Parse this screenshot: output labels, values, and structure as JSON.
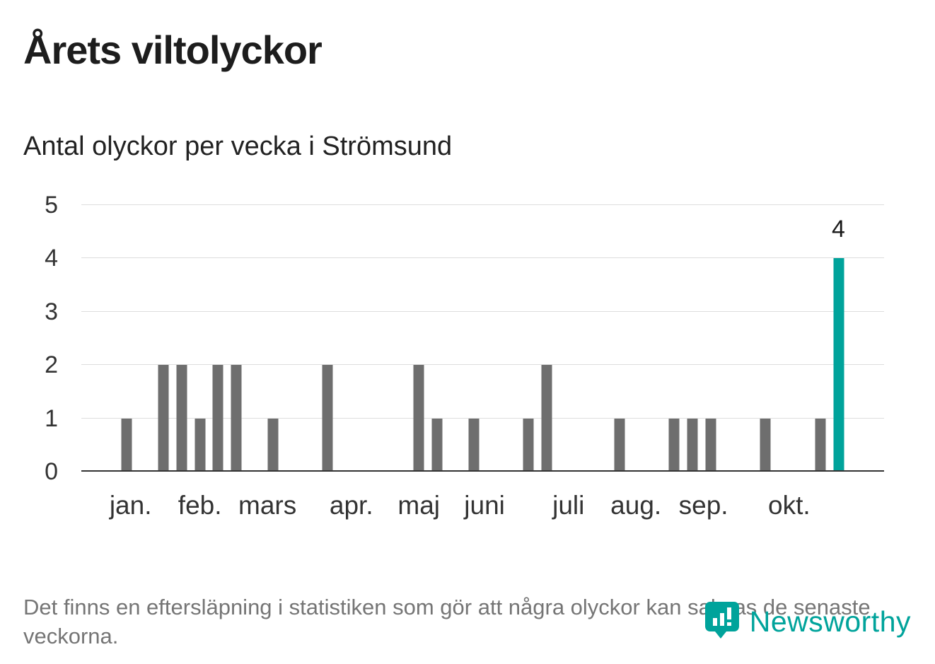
{
  "page": {
    "title": "Årets viltolyckor",
    "subtitle": "Antal olyckor per vecka i Strömsund",
    "footnote": "Det finns en eftersläpning i statistiken som gör att några olyckor kan saknas de senaste veckorna.",
    "brand": "Newsworthy"
  },
  "colors": {
    "bar": "#6e6e6e",
    "highlight": "#00a39b",
    "brand": "#00a39b",
    "axis": "#333333",
    "gridline": "#dddddd",
    "text": "#1a1a1a",
    "muted": "#757575"
  },
  "chart_data": {
    "type": "bar",
    "title": "Årets viltolyckor",
    "subtitle": "Antal olyckor per vecka i Strömsund",
    "xlabel": "",
    "ylabel": "",
    "weeks": [
      1,
      2,
      3,
      4,
      5,
      6,
      7,
      8,
      9,
      10,
      11,
      12,
      13,
      14,
      15,
      16,
      17,
      18,
      19,
      20,
      21,
      22,
      23,
      24,
      25,
      26,
      27,
      28,
      29,
      30,
      31,
      32,
      33,
      34,
      35,
      36,
      37,
      38,
      39,
      40,
      41,
      42,
      43,
      44
    ],
    "values": [
      0,
      0,
      1,
      0,
      2,
      2,
      1,
      2,
      2,
      0,
      1,
      0,
      0,
      2,
      0,
      0,
      0,
      0,
      2,
      1,
      0,
      1,
      0,
      0,
      1,
      2,
      0,
      0,
      0,
      1,
      0,
      0,
      1,
      1,
      1,
      0,
      0,
      1,
      0,
      0,
      1,
      4,
      0,
      0
    ],
    "highlight_index": 41,
    "annotation": {
      "text": "4"
    },
    "ylim": [
      0,
      5
    ],
    "yticks": [
      0,
      1,
      2,
      3,
      4,
      5
    ],
    "grid": true,
    "legend": "none",
    "month_ticks": [
      {
        "label": "jan.",
        "week_pos": 2.7
      },
      {
        "label": "feb.",
        "week_pos": 6.5
      },
      {
        "label": "mars",
        "week_pos": 10.2
      },
      {
        "label": "apr.",
        "week_pos": 14.8
      },
      {
        "label": "maj",
        "week_pos": 18.5
      },
      {
        "label": "juni",
        "week_pos": 22.1
      },
      {
        "label": "juli",
        "week_pos": 26.7
      },
      {
        "label": "aug.",
        "week_pos": 30.4
      },
      {
        "label": "sep.",
        "week_pos": 34.1
      },
      {
        "label": "okt.",
        "week_pos": 38.8
      }
    ]
  }
}
